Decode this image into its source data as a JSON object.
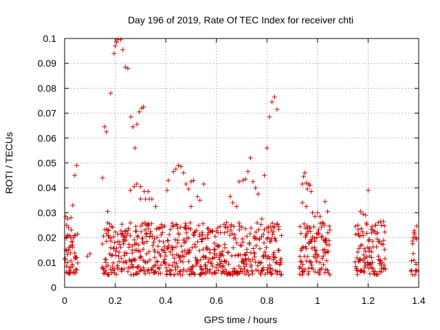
{
  "chart_data": {
    "type": "scatter",
    "title": "Day 196 of 2019, Rate Of TEC Index for receiver chti",
    "xlabel": "GPS time / hours",
    "ylabel": "ROTI / TECUs",
    "xlim": [
      0,
      1.4
    ],
    "ylim": [
      0,
      0.1
    ],
    "grid": true,
    "marker": "+",
    "color": "#cc0000",
    "x_ticks": [
      {
        "value": 0,
        "label": "0"
      },
      {
        "value": 0.2,
        "label": "0.2"
      },
      {
        "value": 0.4,
        "label": "0.4"
      },
      {
        "value": 0.6,
        "label": "0.6"
      },
      {
        "value": 0.8,
        "label": "0.8"
      },
      {
        "value": 1.0,
        "label": "1"
      },
      {
        "value": 1.2,
        "label": "1.2"
      },
      {
        "value": 1.4,
        "label": "1.4"
      }
    ],
    "y_ticks": [
      {
        "value": 0,
        "label": "0"
      },
      {
        "value": 0.01,
        "label": "0.01"
      },
      {
        "value": 0.02,
        "label": "0.02"
      },
      {
        "value": 0.03,
        "label": "0.03"
      },
      {
        "value": 0.04,
        "label": "0.04"
      },
      {
        "value": 0.05,
        "label": "0.05"
      },
      {
        "value": 0.06,
        "label": "0.06"
      },
      {
        "value": 0.07,
        "label": "0.07"
      },
      {
        "value": 0.08,
        "label": "0.08"
      },
      {
        "value": 0.09,
        "label": "0.09"
      },
      {
        "value": 0.1,
        "label": "0.1"
      }
    ],
    "series": [
      {
        "name": "ROTI",
        "color": "#cc0000",
        "points": [
          [
            0.005,
            0.0285
          ],
          [
            0.008,
            0.025
          ],
          [
            0.012,
            0.0275
          ],
          [
            0.015,
            0.024
          ],
          [
            0.025,
            0.028
          ],
          [
            0.032,
            0.033
          ],
          [
            0.04,
            0.045
          ],
          [
            0.048,
            0.049
          ],
          [
            0.15,
            0.044
          ],
          [
            0.158,
            0.0645
          ],
          [
            0.165,
            0.0625
          ],
          [
            0.17,
            0.0305
          ],
          [
            0.178,
            0.0255
          ],
          [
            0.182,
            0.078
          ],
          [
            0.195,
            0.094
          ],
          [
            0.2,
            0.097
          ],
          [
            0.205,
            0.0985
          ],
          [
            0.21,
            0.0995
          ],
          [
            0.222,
            0.0995
          ],
          [
            0.23,
            0.0955
          ],
          [
            0.24,
            0.0885
          ],
          [
            0.25,
            0.088
          ],
          [
            0.262,
            0.0685
          ],
          [
            0.27,
            0.0645
          ],
          [
            0.278,
            0.056
          ],
          [
            0.286,
            0.0655
          ],
          [
            0.295,
            0.0705
          ],
          [
            0.305,
            0.072
          ],
          [
            0.312,
            0.0725
          ],
          [
            0.26,
            0.039
          ],
          [
            0.275,
            0.0405
          ],
          [
            0.285,
            0.0415
          ],
          [
            0.3,
            0.0405
          ],
          [
            0.315,
            0.0385
          ],
          [
            0.33,
            0.0385
          ],
          [
            0.345,
            0.0355
          ],
          [
            0.36,
            0.0325
          ],
          [
            0.3,
            0.0355
          ],
          [
            0.32,
            0.0355
          ],
          [
            0.335,
            0.0355
          ],
          [
            0.405,
            0.039
          ],
          [
            0.41,
            0.043
          ],
          [
            0.43,
            0.0465
          ],
          [
            0.44,
            0.0475
          ],
          [
            0.45,
            0.049
          ],
          [
            0.46,
            0.0485
          ],
          [
            0.47,
            0.046
          ],
          [
            0.48,
            0.0415
          ],
          [
            0.49,
            0.0395
          ],
          [
            0.5,
            0.0425
          ],
          [
            0.51,
            0.043
          ],
          [
            0.525,
            0.0365
          ],
          [
            0.535,
            0.035
          ],
          [
            0.55,
            0.0415
          ],
          [
            0.5,
            0.0325
          ],
          [
            0.655,
            0.0365
          ],
          [
            0.665,
            0.034
          ],
          [
            0.68,
            0.0325
          ],
          [
            0.69,
            0.0425
          ],
          [
            0.705,
            0.043
          ],
          [
            0.715,
            0.0435
          ],
          [
            0.725,
            0.0465
          ],
          [
            0.735,
            0.052
          ],
          [
            0.745,
            0.0425
          ],
          [
            0.755,
            0.04
          ],
          [
            0.765,
            0.0375
          ],
          [
            0.78,
            0.0275
          ],
          [
            0.79,
            0.045
          ],
          [
            0.8,
            0.056
          ],
          [
            0.81,
            0.0685
          ],
          [
            0.82,
            0.0745
          ],
          [
            0.83,
            0.0765
          ],
          [
            0.84,
            0.0715
          ],
          [
            0.94,
            0.0415
          ],
          [
            0.945,
            0.0445
          ],
          [
            0.95,
            0.046
          ],
          [
            0.955,
            0.042
          ],
          [
            0.96,
            0.0395
          ],
          [
            0.965,
            0.0415
          ],
          [
            0.97,
            0.041
          ],
          [
            0.975,
            0.0385
          ],
          [
            0.94,
            0.034
          ],
          [
            0.955,
            0.0325
          ],
          [
            0.98,
            0.03
          ],
          [
            0.99,
            0.0285
          ],
          [
            1.0,
            0.03
          ],
          [
            1.01,
            0.0285
          ],
          [
            1.02,
            0.026
          ],
          [
            1.03,
            0.0345
          ],
          [
            1.04,
            0.0305
          ],
          [
            1.15,
            0.0245
          ],
          [
            1.16,
            0.025
          ],
          [
            1.17,
            0.0305
          ],
          [
            1.18,
            0.0295
          ],
          [
            1.19,
            0.029
          ],
          [
            1.2,
            0.039
          ],
          [
            1.23,
            0.025
          ],
          [
            1.24,
            0.026
          ],
          [
            1.25,
            0.0265
          ],
          [
            1.26,
            0.0265
          ],
          [
            0.09,
            0.0125
          ],
          [
            0.1,
            0.0135
          ]
        ],
        "dense_band": {
          "description": "dense cluster of ROTI values between about 0.005 and 0.025 TECUs",
          "segments": [
            [
              0.0,
              0.05
            ],
            [
              0.15,
              0.86
            ],
            [
              0.93,
              1.05
            ],
            [
              1.15,
              1.27
            ],
            [
              1.37,
              1.395
            ]
          ],
          "x_step": 0.0045,
          "y_range": [
            0.005,
            0.026
          ]
        }
      }
    ]
  }
}
